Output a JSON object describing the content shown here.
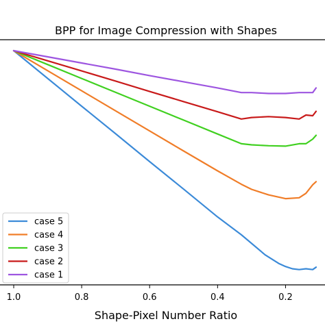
{
  "chart_data": {
    "type": "line",
    "title": "BPP for Image Compression with Shapes",
    "xlabel": "Shape-Pixel Number Ratio",
    "ylabel": "",
    "x_reversed": true,
    "x_ticks": [
      1.0,
      0.8,
      0.6,
      0.4,
      0.2
    ],
    "x_tick_labels": [
      "1.0",
      "0.8",
      "0.6",
      "0.4",
      "0.2"
    ],
    "xlim": [
      1.0,
      0.1
    ],
    "ylim": [
      0.0,
      1.0
    ],
    "y_ticks_visible": false,
    "grid": false,
    "legend_position": "lower left",
    "series": [
      {
        "name": "case 5",
        "color": "#3b8ad8",
        "x": [
          1.0,
          0.9,
          0.8,
          0.7,
          0.6,
          0.5,
          0.4,
          0.33,
          0.26,
          0.22,
          0.2,
          0.18,
          0.16,
          0.14,
          0.12,
          0.11
        ],
        "y": [
          1.0,
          0.874,
          0.748,
          0.623,
          0.497,
          0.372,
          0.246,
          0.165,
          0.074,
          0.035,
          0.021,
          0.011,
          0.007,
          0.011,
          0.007,
          0.018
        ]
      },
      {
        "name": "case 4",
        "color": "#f07d28",
        "x": [
          1.0,
          0.9,
          0.8,
          0.7,
          0.6,
          0.5,
          0.4,
          0.33,
          0.3,
          0.25,
          0.2,
          0.16,
          0.14,
          0.12,
          0.11
        ],
        "y": [
          1.0,
          0.909,
          0.818,
          0.727,
          0.636,
          0.545,
          0.455,
          0.394,
          0.371,
          0.346,
          0.329,
          0.333,
          0.353,
          0.392,
          0.406
        ]
      },
      {
        "name": "case 3",
        "color": "#40d020",
        "x": [
          1.0,
          0.9,
          0.8,
          0.7,
          0.6,
          0.5,
          0.4,
          0.33,
          0.3,
          0.25,
          0.2,
          0.16,
          0.14,
          0.12,
          0.11
        ],
        "y": [
          1.0,
          0.937,
          0.874,
          0.811,
          0.748,
          0.685,
          0.622,
          0.578,
          0.573,
          0.569,
          0.567,
          0.578,
          0.578,
          0.599,
          0.616
        ]
      },
      {
        "name": "case 2",
        "color": "#c81a1a",
        "x": [
          1.0,
          0.9,
          0.8,
          0.7,
          0.6,
          0.5,
          0.4,
          0.33,
          0.3,
          0.25,
          0.2,
          0.16,
          0.14,
          0.12,
          0.11
        ],
        "y": [
          1.0,
          0.954,
          0.908,
          0.862,
          0.815,
          0.769,
          0.723,
          0.69,
          0.697,
          0.701,
          0.697,
          0.69,
          0.708,
          0.705,
          0.725
        ]
      },
      {
        "name": "case 1",
        "color": "#9d55e0",
        "x": [
          1.0,
          0.9,
          0.8,
          0.7,
          0.6,
          0.5,
          0.4,
          0.33,
          0.3,
          0.25,
          0.2,
          0.16,
          0.14,
          0.12,
          0.11
        ],
        "y": [
          1.0,
          0.972,
          0.944,
          0.916,
          0.887,
          0.859,
          0.831,
          0.81,
          0.81,
          0.806,
          0.806,
          0.81,
          0.81,
          0.81,
          0.831
        ]
      }
    ]
  }
}
